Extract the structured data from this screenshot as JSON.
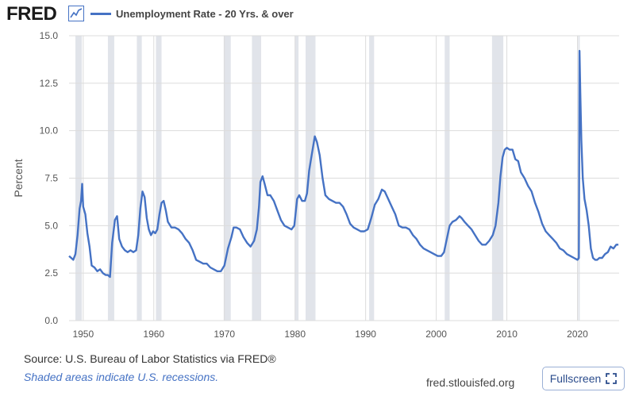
{
  "header": {
    "logo_text": "FRED",
    "logo_icon": "line-chart-icon",
    "legend_label": "Unemployment Rate - 20 Yrs. & over"
  },
  "footer": {
    "source": "U.S. Bureau of Labor Statistics via FRED®",
    "source_prefix": "Source: ",
    "note": "Shaded areas indicate U.S. recessions.",
    "site": "fred.stlouisfed.org",
    "fullscreen_label": "Fullscreen",
    "fullscreen_icon": "expand-icon"
  },
  "colors": {
    "series": "#4572c4",
    "recession": "#e1e4ea",
    "grid": "#dcdcdc"
  },
  "chart_data": {
    "type": "line",
    "title": "",
    "ylabel": "Percent",
    "xlabel": "",
    "ylim": [
      0,
      15
    ],
    "xlim": [
      1948,
      2025.9
    ],
    "yticks": [
      "0.0",
      "2.5",
      "5.0",
      "7.5",
      "10.0",
      "12.5",
      "15.0"
    ],
    "xticks": [
      "1950",
      "1960",
      "1970",
      "1980",
      "1990",
      "2000",
      "2010",
      "2020"
    ],
    "grid": true,
    "legend_position": "top",
    "recessions": [
      [
        1948.9,
        1949.8
      ],
      [
        1953.5,
        1954.4
      ],
      [
        1957.6,
        1958.3
      ],
      [
        1960.3,
        1961.1
      ],
      [
        1969.9,
        1970.9
      ],
      [
        1973.9,
        1975.2
      ],
      [
        1980.0,
        1980.5
      ],
      [
        1981.5,
        1982.9
      ],
      [
        1990.5,
        1991.2
      ],
      [
        2001.2,
        2001.9
      ],
      [
        2007.9,
        2009.5
      ],
      [
        2020.1,
        2020.3
      ]
    ],
    "series": [
      {
        "name": "Unemployment Rate - 20 Yrs. & over",
        "points": [
          [
            1948.0,
            3.4
          ],
          [
            1948.3,
            3.3
          ],
          [
            1948.6,
            3.2
          ],
          [
            1948.9,
            3.5
          ],
          [
            1949.2,
            4.5
          ],
          [
            1949.5,
            5.9
          ],
          [
            1949.7,
            6.3
          ],
          [
            1949.85,
            7.2
          ],
          [
            1950.0,
            6.0
          ],
          [
            1950.3,
            5.6
          ],
          [
            1950.6,
            4.6
          ],
          [
            1950.9,
            3.9
          ],
          [
            1951.2,
            2.9
          ],
          [
            1951.6,
            2.8
          ],
          [
            1952.0,
            2.6
          ],
          [
            1952.4,
            2.7
          ],
          [
            1952.8,
            2.5
          ],
          [
            1953.2,
            2.4
          ],
          [
            1953.5,
            2.4
          ],
          [
            1953.8,
            2.3
          ],
          [
            1954.1,
            4.1
          ],
          [
            1954.5,
            5.3
          ],
          [
            1954.8,
            5.5
          ],
          [
            1955.1,
            4.3
          ],
          [
            1955.5,
            3.9
          ],
          [
            1955.9,
            3.7
          ],
          [
            1956.3,
            3.6
          ],
          [
            1956.7,
            3.7
          ],
          [
            1957.1,
            3.6
          ],
          [
            1957.5,
            3.7
          ],
          [
            1957.8,
            4.5
          ],
          [
            1958.1,
            5.9
          ],
          [
            1958.4,
            6.8
          ],
          [
            1958.7,
            6.5
          ],
          [
            1959.0,
            5.4
          ],
          [
            1959.3,
            4.8
          ],
          [
            1959.6,
            4.5
          ],
          [
            1959.9,
            4.7
          ],
          [
            1960.2,
            4.6
          ],
          [
            1960.5,
            4.8
          ],
          [
            1960.8,
            5.6
          ],
          [
            1961.1,
            6.2
          ],
          [
            1961.4,
            6.3
          ],
          [
            1961.7,
            5.8
          ],
          [
            1962.0,
            5.2
          ],
          [
            1962.5,
            4.9
          ],
          [
            1963.0,
            4.9
          ],
          [
            1963.5,
            4.8
          ],
          [
            1964.0,
            4.6
          ],
          [
            1964.5,
            4.3
          ],
          [
            1965.0,
            4.1
          ],
          [
            1965.5,
            3.7
          ],
          [
            1966.0,
            3.2
          ],
          [
            1966.5,
            3.1
          ],
          [
            1967.0,
            3.0
          ],
          [
            1967.5,
            3.0
          ],
          [
            1968.0,
            2.8
          ],
          [
            1968.5,
            2.7
          ],
          [
            1969.0,
            2.6
          ],
          [
            1969.5,
            2.6
          ],
          [
            1970.0,
            2.9
          ],
          [
            1970.5,
            3.8
          ],
          [
            1971.0,
            4.4
          ],
          [
            1971.3,
            4.9
          ],
          [
            1971.7,
            4.9
          ],
          [
            1972.2,
            4.8
          ],
          [
            1972.7,
            4.4
          ],
          [
            1973.2,
            4.1
          ],
          [
            1973.7,
            3.9
          ],
          [
            1974.2,
            4.2
          ],
          [
            1974.6,
            4.8
          ],
          [
            1974.9,
            6.0
          ],
          [
            1975.1,
            7.3
          ],
          [
            1975.4,
            7.6
          ],
          [
            1975.7,
            7.2
          ],
          [
            1976.1,
            6.6
          ],
          [
            1976.5,
            6.6
          ],
          [
            1977.0,
            6.3
          ],
          [
            1977.5,
            5.8
          ],
          [
            1978.0,
            5.3
          ],
          [
            1978.5,
            5.0
          ],
          [
            1979.0,
            4.9
          ],
          [
            1979.5,
            4.8
          ],
          [
            1979.9,
            5.0
          ],
          [
            1980.3,
            6.4
          ],
          [
            1980.6,
            6.6
          ],
          [
            1981.0,
            6.3
          ],
          [
            1981.4,
            6.3
          ],
          [
            1981.7,
            6.7
          ],
          [
            1982.0,
            7.9
          ],
          [
            1982.4,
            8.8
          ],
          [
            1982.8,
            9.7
          ],
          [
            1983.1,
            9.4
          ],
          [
            1983.5,
            8.7
          ],
          [
            1983.9,
            7.5
          ],
          [
            1984.3,
            6.6
          ],
          [
            1984.8,
            6.4
          ],
          [
            1985.3,
            6.3
          ],
          [
            1985.8,
            6.2
          ],
          [
            1986.3,
            6.2
          ],
          [
            1986.8,
            6.0
          ],
          [
            1987.3,
            5.6
          ],
          [
            1987.8,
            5.1
          ],
          [
            1988.3,
            4.9
          ],
          [
            1988.8,
            4.8
          ],
          [
            1989.3,
            4.7
          ],
          [
            1989.8,
            4.7
          ],
          [
            1990.3,
            4.8
          ],
          [
            1990.8,
            5.4
          ],
          [
            1991.3,
            6.1
          ],
          [
            1991.8,
            6.4
          ],
          [
            1992.3,
            6.9
          ],
          [
            1992.7,
            6.8
          ],
          [
            1993.2,
            6.4
          ],
          [
            1993.7,
            6.0
          ],
          [
            1994.2,
            5.6
          ],
          [
            1994.7,
            5.0
          ],
          [
            1995.2,
            4.9
          ],
          [
            1995.7,
            4.9
          ],
          [
            1996.2,
            4.8
          ],
          [
            1996.7,
            4.5
          ],
          [
            1997.2,
            4.3
          ],
          [
            1997.7,
            4.0
          ],
          [
            1998.2,
            3.8
          ],
          [
            1998.7,
            3.7
          ],
          [
            1999.2,
            3.6
          ],
          [
            1999.7,
            3.5
          ],
          [
            2000.2,
            3.4
          ],
          [
            2000.7,
            3.4
          ],
          [
            2001.1,
            3.6
          ],
          [
            2001.5,
            4.3
          ],
          [
            2001.9,
            5.0
          ],
          [
            2002.3,
            5.2
          ],
          [
            2002.8,
            5.3
          ],
          [
            2003.3,
            5.5
          ],
          [
            2003.6,
            5.4
          ],
          [
            2004.0,
            5.2
          ],
          [
            2004.5,
            5.0
          ],
          [
            2005.0,
            4.8
          ],
          [
            2005.5,
            4.5
          ],
          [
            2006.0,
            4.2
          ],
          [
            2006.5,
            4.0
          ],
          [
            2007.0,
            4.0
          ],
          [
            2007.5,
            4.2
          ],
          [
            2008.0,
            4.5
          ],
          [
            2008.4,
            5.0
          ],
          [
            2008.8,
            6.2
          ],
          [
            2009.1,
            7.6
          ],
          [
            2009.4,
            8.6
          ],
          [
            2009.7,
            9.0
          ],
          [
            2010.0,
            9.1
          ],
          [
            2010.4,
            9.0
          ],
          [
            2010.8,
            9.0
          ],
          [
            2011.2,
            8.5
          ],
          [
            2011.6,
            8.4
          ],
          [
            2012.0,
            7.8
          ],
          [
            2012.5,
            7.5
          ],
          [
            2013.0,
            7.1
          ],
          [
            2013.5,
            6.8
          ],
          [
            2014.0,
            6.2
          ],
          [
            2014.5,
            5.7
          ],
          [
            2015.0,
            5.1
          ],
          [
            2015.5,
            4.7
          ],
          [
            2016.0,
            4.5
          ],
          [
            2016.5,
            4.3
          ],
          [
            2017.0,
            4.1
          ],
          [
            2017.5,
            3.8
          ],
          [
            2018.0,
            3.7
          ],
          [
            2018.5,
            3.5
          ],
          [
            2019.0,
            3.4
          ],
          [
            2019.5,
            3.3
          ],
          [
            2020.0,
            3.2
          ],
          [
            2020.2,
            3.3
          ],
          [
            2020.29,
            14.2
          ],
          [
            2020.4,
            12.0
          ],
          [
            2020.55,
            9.5
          ],
          [
            2020.75,
            7.5
          ],
          [
            2021.0,
            6.4
          ],
          [
            2021.3,
            5.8
          ],
          [
            2021.6,
            5.0
          ],
          [
            2021.9,
            3.8
          ],
          [
            2022.2,
            3.3
          ],
          [
            2022.5,
            3.2
          ],
          [
            2022.8,
            3.2
          ],
          [
            2023.1,
            3.3
          ],
          [
            2023.5,
            3.3
          ],
          [
            2023.9,
            3.5
          ],
          [
            2024.3,
            3.6
          ],
          [
            2024.7,
            3.9
          ],
          [
            2025.1,
            3.8
          ],
          [
            2025.5,
            4.0
          ],
          [
            2025.8,
            4.0
          ]
        ]
      }
    ]
  }
}
